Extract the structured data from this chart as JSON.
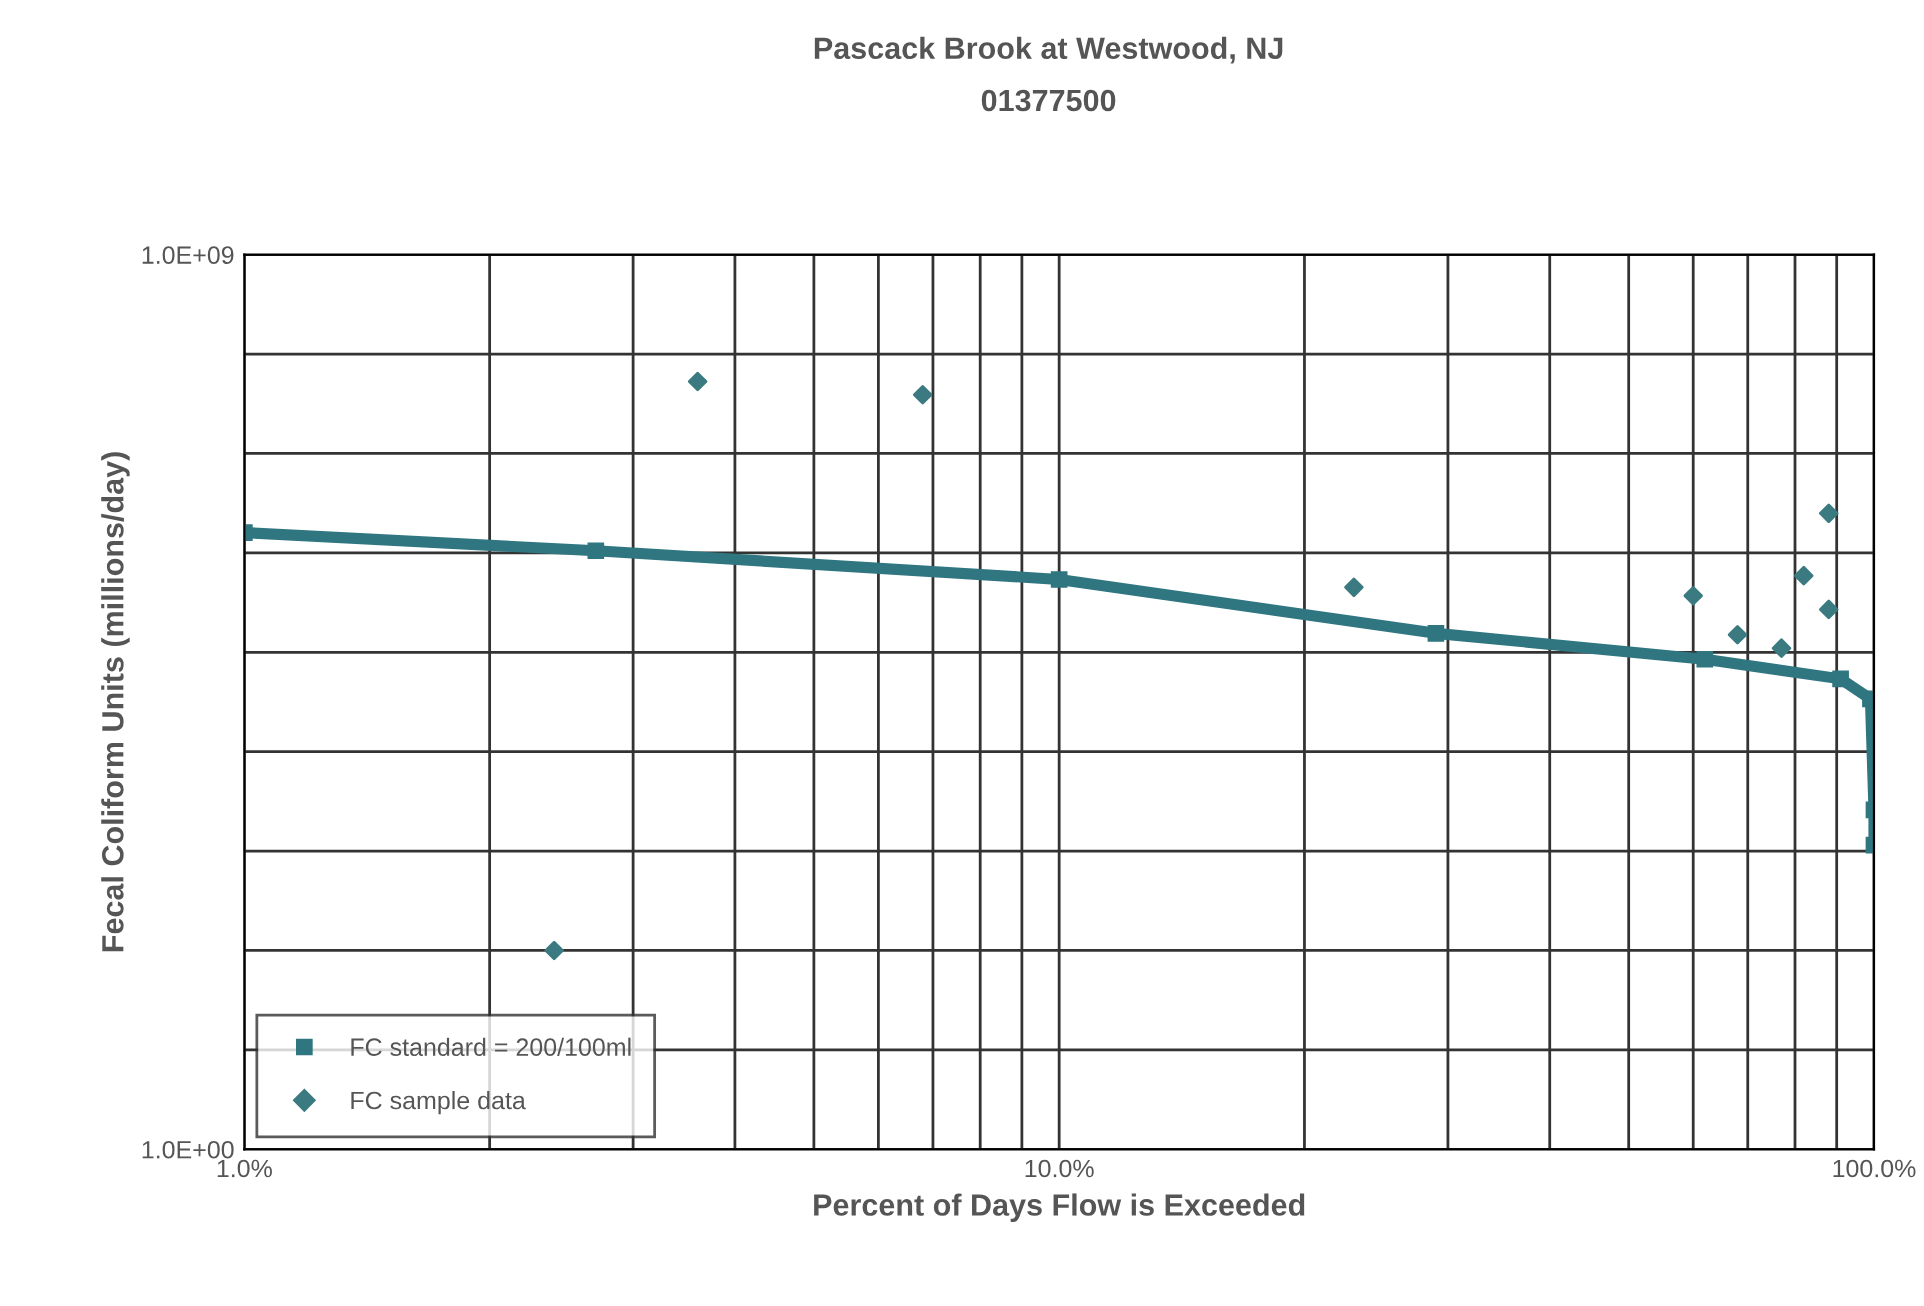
{
  "chart_data": {
    "type": "scatter",
    "title": "Pascack Brook at Westwood, NJ",
    "subtitle": "01377500",
    "xlabel": "Percent of Days Flow is Exceeded",
    "ylabel": "Fecal Coliform Units (millions/day)",
    "log": "xy",
    "grid": true,
    "legend": "bottom left",
    "xlim": [
      1,
      100
    ],
    "ylim": [
      1,
      1000000000
    ],
    "xticks": [
      {
        "value": 1,
        "label": "1.0%"
      },
      {
        "value": 2,
        "label": null
      },
      {
        "value": 3,
        "label": null
      },
      {
        "value": 4,
        "label": null
      },
      {
        "value": 5,
        "label": null
      },
      {
        "value": 6,
        "label": null
      },
      {
        "value": 7,
        "label": null
      },
      {
        "value": 8,
        "label": null
      },
      {
        "value": 9,
        "label": null
      },
      {
        "value": 10,
        "label": "10.0%"
      },
      {
        "value": 20,
        "label": null
      },
      {
        "value": 30,
        "label": null
      },
      {
        "value": 40,
        "label": null
      },
      {
        "value": 50,
        "label": null
      },
      {
        "value": 60,
        "label": null
      },
      {
        "value": 70,
        "label": null
      },
      {
        "value": 80,
        "label": null
      },
      {
        "value": 90,
        "label": null
      },
      {
        "value": 100,
        "label": "100.0%"
      }
    ],
    "yticks": [
      {
        "value": 1,
        "label": "1.0E+00"
      },
      {
        "value": 10,
        "label": null
      },
      {
        "value": 100,
        "label": null
      },
      {
        "value": 1000,
        "label": null
      },
      {
        "value": 10000,
        "label": null
      },
      {
        "value": 100000,
        "label": null
      },
      {
        "value": 1000000,
        "label": null
      },
      {
        "value": 10000000,
        "label": null
      },
      {
        "value": 100000000,
        "label": null
      },
      {
        "value": 1000000000,
        "label": "1.0E+09"
      }
    ],
    "series": [
      {
        "name": "FC standard = 200/100ml",
        "type": "line",
        "marker": "square",
        "color": "#2f7680",
        "x": [
          1,
          2.7,
          10,
          29,
          62,
          91,
          99,
          100,
          100
        ],
        "values": [
          1600000,
          1050000,
          540000,
          155000,
          85000,
          54000,
          34000,
          2600,
          1150
        ]
      },
      {
        "name": "FC sample data",
        "marker": "diamond",
        "color": "#3a7a80",
        "x": [
          2.4,
          3.6,
          6.8,
          23,
          60,
          68,
          77,
          82,
          88,
          88
        ],
        "values": [
          100,
          53000000,
          39000000,
          450000,
          370000,
          150000,
          110000,
          590000,
          2500000,
          270000
        ]
      }
    ]
  }
}
